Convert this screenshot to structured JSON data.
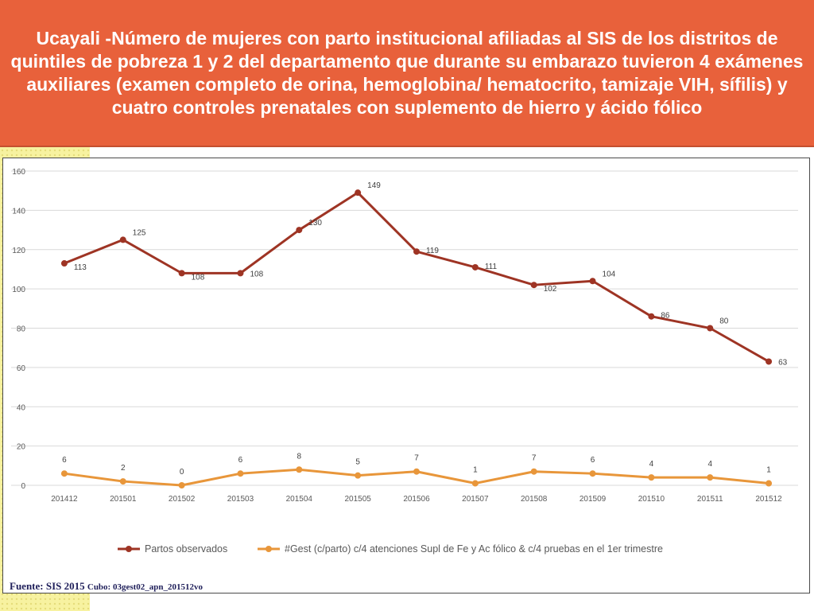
{
  "title": "Ucayali -Número de mujeres con parto institucional afiliadas al SIS de los distritos de quintiles de pobreza 1 y 2 del departamento que durante su embarazo tuvieron 4 exámenes auxiliares (examen completo de orina, hemoglobina/ hematocrito, tamizaje VIH, sífilis) y cuatro controles prenatales con suplemento de hierro y ácido fólico",
  "source": {
    "label": "Fuente: SIS 2015",
    "cube": "Cubo: 03gest02_apn_201512vo"
  },
  "colors": {
    "title_bg": "#e8613b",
    "series1": "#9e3424",
    "series2": "#e8963a",
    "grid": "#d9d9d9",
    "axis_text": "#595959"
  },
  "chart_data": {
    "type": "line",
    "title": "",
    "xlabel": "",
    "ylabel": "",
    "ylim": [
      0,
      160
    ],
    "yticks": [
      0,
      20,
      40,
      60,
      80,
      100,
      120,
      140,
      160
    ],
    "grid": true,
    "legend_position": "bottom",
    "categories": [
      "201412",
      "201501",
      "201502",
      "201503",
      "201504",
      "201505",
      "201506",
      "201507",
      "201508",
      "201509",
      "201510",
      "201511",
      "201512"
    ],
    "series": [
      {
        "name": "Partos observados",
        "color": "#9e3424",
        "values": [
          113,
          125,
          108,
          108,
          130,
          149,
          119,
          111,
          102,
          104,
          86,
          80,
          63
        ],
        "labels": [
          "113",
          "125",
          "108",
          "108",
          "130",
          "149",
          "119",
          "111",
          "102",
          "104",
          "86",
          "80",
          "63"
        ]
      },
      {
        "name": "#Gest (c/parto) c/4 atenciones Supl de Fe y Ac fólico & c/4 pruebas en el 1er trimestre",
        "color": "#e8963a",
        "values": [
          6,
          2,
          0,
          6,
          8,
          5,
          7,
          1,
          7,
          6,
          4,
          4,
          1
        ],
        "labels": [
          "6",
          "2",
          "0",
          "6",
          "8",
          "5",
          "7",
          "1",
          "7",
          "6",
          "4",
          "4",
          "1"
        ]
      }
    ]
  }
}
